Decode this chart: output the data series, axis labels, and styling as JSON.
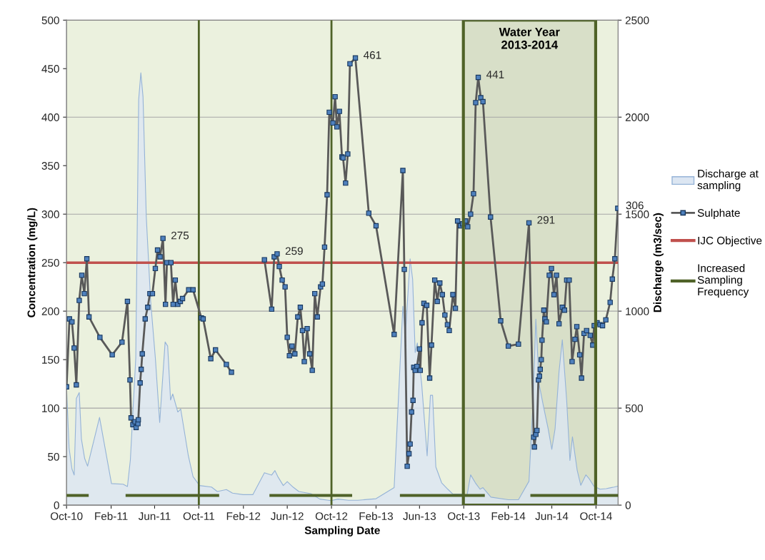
{
  "chart_data": {
    "type": "line",
    "xlabel": "Sampling Date",
    "ylabel": "Concentration (mg/L)",
    "y2label": "Discharge (m3/sec)",
    "xlim": [
      "2010-10-01",
      "2014-12-01"
    ],
    "xticks": [
      {
        "value": "2010-10-01",
        "label": "Oct-10"
      },
      {
        "value": "2011-02-01",
        "label": "Feb-11"
      },
      {
        "value": "2011-06-01",
        "label": "Jun-11"
      },
      {
        "value": "2011-10-01",
        "label": "Oct-11"
      },
      {
        "value": "2012-02-01",
        "label": "Feb-12"
      },
      {
        "value": "2012-06-01",
        "label": "Jun-12"
      },
      {
        "value": "2012-10-01",
        "label": "Oct-12"
      },
      {
        "value": "2013-02-01",
        "label": "Feb-13"
      },
      {
        "value": "2013-06-01",
        "label": "Jun-13"
      },
      {
        "value": "2013-10-01",
        "label": "Oct-13"
      },
      {
        "value": "2014-02-01",
        "label": "Feb-14"
      },
      {
        "value": "2014-06-01",
        "label": "Jun-14"
      },
      {
        "value": "2014-10-01",
        "label": "Oct-14"
      }
    ],
    "ylim": [
      0,
      500
    ],
    "yticks": [
      0,
      50,
      100,
      150,
      200,
      250,
      300,
      350,
      400,
      450,
      500
    ],
    "y2lim": [
      0,
      2500
    ],
    "y2ticks": [
      0,
      500,
      1000,
      1500,
      2000,
      2500
    ],
    "grid": true,
    "legend": "right",
    "series": [
      {
        "name": "Discharge at\nsampling",
        "type": "area",
        "axis": "y2",
        "color": "#95b3d7",
        "x": [
          "2010-10-01",
          "2010-10-08",
          "2010-10-16",
          "2010-10-22",
          "2010-10-28",
          "2010-11-05",
          "2010-11-11",
          "2010-11-20",
          "2010-11-28",
          "2010-12-31",
          "2011-02-02",
          "2011-03-06",
          "2011-03-18",
          "2011-03-26",
          "2011-04-10",
          "2011-04-18",
          "2011-04-24",
          "2011-04-30",
          "2011-05-09",
          "2011-05-21",
          "2011-06-03",
          "2011-06-15",
          "2011-06-30",
          "2011-07-07",
          "2011-07-15",
          "2011-07-21",
          "2011-08-04",
          "2011-08-12",
          "2011-09-02",
          "2011-09-15",
          "2011-10-03",
          "2011-11-05",
          "2011-11-21",
          "2011-12-16",
          "2012-01-02",
          "2012-01-31",
          "2012-02-27",
          "2012-03-30",
          "2012-04-19",
          "2012-04-28",
          "2012-05-06",
          "2012-05-21",
          "2012-06-01",
          "2012-06-17",
          "2012-07-03",
          "2012-08-05",
          "2012-08-30",
          "2012-09-30",
          "2012-10-19",
          "2012-11-17",
          "2012-12-13",
          "2013-02-01",
          "2013-03-23",
          "2013-04-16",
          "2013-04-23",
          "2013-05-06",
          "2013-05-13",
          "2013-05-20",
          "2013-05-26",
          "2013-06-07",
          "2013-06-22",
          "2013-07-01",
          "2013-07-07",
          "2013-07-16",
          "2013-08-01",
          "2013-08-18",
          "2013-09-01",
          "2013-09-27",
          "2013-10-10",
          "2013-10-20",
          "2013-11-02",
          "2013-11-15",
          "2013-11-23",
          "2013-12-15",
          "2014-02-01",
          "2014-03-01",
          "2014-03-30",
          "2014-04-10",
          "2014-04-18",
          "2014-04-27",
          "2014-05-10",
          "2014-05-22",
          "2014-06-01",
          "2014-06-10",
          "2014-06-21",
          "2014-06-30",
          "2014-07-12",
          "2014-07-21",
          "2014-07-28",
          "2014-08-10",
          "2014-08-20",
          "2014-09-03",
          "2014-09-11",
          "2014-09-25",
          "2014-10-12",
          "2014-10-29",
          "2014-11-11",
          "2014-11-20",
          "2014-12-01"
        ],
        "values": [
          604,
          294,
          186,
          155,
          550,
          580,
          341,
          240,
          201,
          452,
          111,
          108,
          96,
          232,
          759,
          2090,
          2229,
          2105,
          1486,
          1053,
          759,
          426,
          841,
          820,
          542,
          573,
          480,
          495,
          255,
          147,
          101,
          93,
          70,
          80,
          62,
          54,
          54,
          167,
          155,
          178,
          147,
          101,
          121,
          93,
          70,
          59,
          31,
          23,
          31,
          25,
          25,
          33,
          90,
          1025,
          877,
          1270,
          1164,
          787,
          836,
          623,
          254,
          566,
          566,
          197,
          115,
          82,
          57,
          57,
          49,
          156,
          115,
          82,
          90,
          41,
          28,
          28,
          123,
          525,
          959,
          623,
          500,
          393,
          287,
          393,
          689,
          852,
          541,
          230,
          352,
          180,
          102,
          156,
          139,
          98,
          82,
          85,
          90,
          93,
          98
        ]
      },
      {
        "name": "Sulphate",
        "color": "#595959",
        "marker": "square",
        "x": [
          "2010-10-01",
          "2010-10-09",
          "2010-10-16",
          "2010-10-22",
          "2010-10-28",
          "2010-11-05",
          "2010-11-12",
          "2010-11-19",
          "2010-11-26",
          "2010-12-02",
          "2011-01-01",
          "2011-02-04",
          "2011-03-03",
          "2011-03-18",
          "2011-03-25",
          "2011-03-28",
          "2011-04-02",
          "2011-04-08",
          "2011-04-11",
          "2011-04-16",
          "2011-04-17",
          "2011-04-22",
          "2011-04-25",
          "2011-04-28",
          "2011-05-06",
          "2011-05-13",
          "2011-05-19",
          "2011-05-26",
          "2011-06-03",
          "2011-06-09",
          "2011-06-16",
          "2011-06-24",
          "2011-07-01",
          "2011-07-05",
          "2011-07-16",
          "2011-07-22",
          "2011-07-28",
          "2011-08-04",
          "2011-08-11",
          "2011-08-17",
          "2011-09-03",
          "2011-09-15",
          "2011-10-08",
          "2011-10-13",
          "2011-11-03",
          "2011-11-16",
          "2011-12-16",
          "2011-12-30",
          "2012-02-15",
          "2012-03-30",
          "2012-04-19",
          "2012-04-26",
          "2012-05-04",
          "2012-05-10",
          "2012-05-18",
          "2012-05-26",
          "2012-06-01",
          "2012-06-07",
          "2012-06-14",
          "2012-06-22",
          "2012-06-30",
          "2012-07-07",
          "2012-07-13",
          "2012-07-18",
          "2012-07-26",
          "2012-08-02",
          "2012-08-09",
          "2012-08-16",
          "2012-08-23",
          "2012-09-01",
          "2012-09-06",
          "2012-09-12",
          "2012-09-19",
          "2012-09-25",
          "2012-10-05",
          "2012-10-11",
          "2012-10-16",
          "2012-10-23",
          "2012-10-30",
          "2012-11-02",
          "2012-11-09",
          "2012-11-15",
          "2012-11-21",
          "2012-12-06",
          "2013-01-12",
          "2013-02-01",
          "2013-03-23",
          "2013-04-16",
          "2013-04-20",
          "2013-04-28",
          "2013-05-03",
          "2013-05-06",
          "2013-05-10",
          "2013-05-14",
          "2013-05-16",
          "2013-05-20",
          "2013-05-25",
          "2013-06-01",
          "2013-06-03",
          "2013-06-08",
          "2013-06-13",
          "2013-06-21",
          "2013-06-29",
          "2013-07-04",
          "2013-07-13",
          "2013-07-20",
          "2013-07-27",
          "2013-08-03",
          "2013-08-10",
          "2013-08-17",
          "2013-08-22",
          "2013-09-01",
          "2013-09-08",
          "2013-09-14",
          "2013-09-22",
          "2013-09-28",
          "2013-10-06",
          "2013-10-12",
          "2013-10-20",
          "2013-10-28",
          "2013-11-03",
          "2013-11-10",
          "2013-11-17",
          "2013-11-23",
          "2013-12-14",
          "2014-01-11",
          "2014-02-01",
          "2014-03-01",
          "2014-03-30",
          "2014-04-12",
          "2014-04-14",
          "2014-04-18",
          "2014-04-21",
          "2014-04-25",
          "2014-04-28",
          "2014-04-30",
          "2014-05-03",
          "2014-05-05",
          "2014-05-10",
          "2014-05-13",
          "2014-05-17",
          "2014-05-25",
          "2014-05-31",
          "2014-06-07",
          "2014-06-14",
          "2014-06-21",
          "2014-06-30",
          "2014-07-06",
          "2014-07-12",
          "2014-07-19",
          "2014-07-27",
          "2014-08-04",
          "2014-08-09",
          "2014-08-17",
          "2014-08-22",
          "2014-08-29",
          "2014-09-05",
          "2014-09-15",
          "2014-09-22",
          "2014-09-26",
          "2014-10-04",
          "2014-10-12",
          "2014-10-19",
          "2014-10-28",
          "2014-11-09",
          "2014-11-15",
          "2014-11-22",
          "2014-11-30"
        ],
        "values": [
          122,
          192,
          189,
          162,
          124,
          211,
          237,
          218,
          254,
          194,
          173,
          155,
          168,
          210,
          129,
          90,
          83,
          86,
          80,
          84,
          88,
          126,
          140,
          156,
          192,
          204,
          218,
          218,
          244,
          263,
          256,
          275,
          207,
          250,
          250,
          207,
          232,
          207,
          210,
          213,
          222,
          222,
          193,
          192,
          151,
          160,
          145,
          137,
          null,
          253,
          202,
          256,
          259,
          246,
          232,
          225,
          173,
          154,
          164,
          156,
          194,
          204,
          180,
          148,
          182,
          156,
          139,
          218,
          194,
          225,
          228,
          266,
          320,
          405,
          394,
          421,
          390,
          406,
          359,
          358,
          332,
          362,
          455,
          461,
          301,
          288,
          176,
          345,
          243,
          40,
          53,
          63,
          96,
          108,
          142,
          139,
          143,
          161,
          139,
          188,
          208,
          206,
          131,
          165,
          232,
          210,
          229,
          217,
          196,
          186,
          180,
          217,
          203,
          293,
          288,
          290,
          293,
          287,
          300,
          321,
          415,
          441,
          420,
          416,
          297,
          190,
          164,
          166,
          291,
          70,
          60,
          73,
          77,
          129,
          133,
          140,
          150,
          170,
          201,
          192,
          189,
          237,
          244,
          217,
          237,
          187,
          204,
          201,
          232,
          232,
          148,
          171,
          184,
          155,
          131,
          177,
          180,
          175,
          165,
          185,
          188,
          186,
          185,
          191,
          209,
          233,
          254,
          306
        ],
        "value_labels": [
          null,
          null,
          null,
          null,
          null,
          null,
          null,
          null,
          null,
          null,
          null,
          null,
          null,
          null,
          null,
          null,
          null,
          null,
          null,
          null,
          null,
          null,
          null,
          null,
          null,
          null,
          null,
          null,
          null,
          null,
          null,
          "275",
          null,
          null,
          null,
          null,
          null,
          null,
          null,
          null,
          null,
          null,
          null,
          null,
          null,
          null,
          null,
          null,
          null,
          null,
          null,
          null,
          "259",
          null,
          null,
          null,
          null,
          null,
          null,
          null,
          null,
          null,
          null,
          null,
          null,
          null,
          null,
          null,
          null,
          null,
          null,
          null,
          null,
          null,
          null,
          null,
          null,
          null,
          null,
          null,
          null,
          null,
          null,
          "461",
          null,
          null,
          null,
          null,
          null,
          null,
          null,
          null,
          null,
          null,
          null,
          null,
          null,
          null,
          null,
          null,
          null,
          null,
          null,
          null,
          null,
          null,
          null,
          null,
          null,
          null,
          null,
          null,
          null,
          null,
          null,
          null,
          null,
          null,
          null,
          null,
          null,
          "441",
          null,
          null,
          null,
          null,
          null,
          null,
          "291",
          null,
          null,
          null,
          null,
          null,
          null,
          null,
          null,
          null,
          null,
          null,
          null,
          null,
          null,
          null,
          null,
          null,
          null,
          null,
          null,
          null,
          null,
          null,
          null,
          null,
          null,
          null,
          null,
          null,
          null,
          null,
          null,
          null,
          null,
          null,
          null,
          null,
          null,
          "306"
        ]
      },
      {
        "name": "Increased\nSampling\nFrequency",
        "color": "#4f6228",
        "x": [
          "2010-10-01",
          "2010-11-27"
        ],
        "values": [
          10,
          10
        ]
      },
      {
        "color": "#4f6228",
        "x": [
          "2011-03-17",
          "2011-11-22"
        ],
        "values": [
          10,
          10
        ]
      },
      {
        "color": "#4f6228",
        "x": [
          "2012-04-17",
          "2012-11-23"
        ],
        "values": [
          10,
          10
        ]
      },
      {
        "color": "#4f6228",
        "x": [
          "2013-04-12",
          "2013-11-24"
        ],
        "values": [
          10,
          10
        ]
      },
      {
        "color": "#4f6228",
        "x": [
          "2014-04-07",
          "2014-11-29"
        ],
        "values": [
          10,
          10
        ]
      }
    ],
    "ref_lines": [
      {
        "axis": "y",
        "value": 250,
        "label": "IJC Objective",
        "color": "#c0504d"
      },
      {
        "axis": "x",
        "value": "2011-10-01",
        "color": "#4f6228"
      },
      {
        "axis": "x",
        "value": "2012-10-01",
        "color": "#4f6228"
      }
    ],
    "bands": [
      {
        "axis": "x",
        "from": "2013-09-30",
        "to": "2014-09-30",
        "label": "Water Year\n2013-2014",
        "color": "#4f6228"
      }
    ]
  }
}
